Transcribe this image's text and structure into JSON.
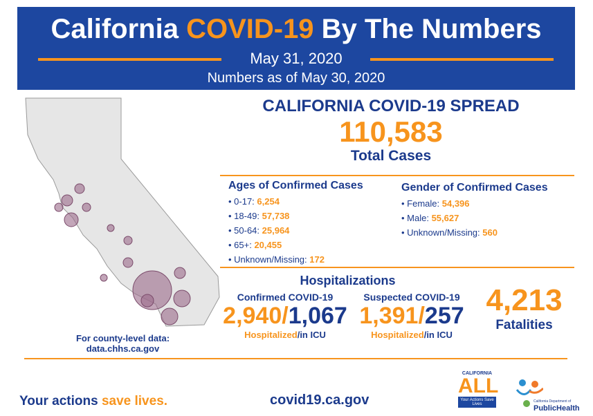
{
  "header": {
    "title_pre": "California ",
    "title_highlight": "COVID-19",
    "title_post": " By The Numbers",
    "date": "May 31, 2020",
    "as_of": "Numbers as of May 30, 2020"
  },
  "spread": {
    "heading": "CALIFORNIA COVID-19 SPREAD",
    "total": "110,583",
    "total_label": "Total Cases"
  },
  "ages": {
    "heading": "Ages of Confirmed Cases",
    "items": [
      {
        "label": "• 0-17: ",
        "value": "6,254"
      },
      {
        "label": "• 18-49: ",
        "value": "57,738"
      },
      {
        "label": "• 50-64: ",
        "value": "25,964"
      },
      {
        "label": "• 65+: ",
        "value": "20,455"
      },
      {
        "label": "• Unknown/Missing: ",
        "value": "172"
      }
    ]
  },
  "gender": {
    "heading": "Gender of Confirmed Cases",
    "items": [
      {
        "label": "• Female: ",
        "value": "54,396"
      },
      {
        "label": "• Male: ",
        "value": "55,627"
      },
      {
        "label": "• Unknown/Missing: ",
        "value": "560"
      }
    ]
  },
  "hosp": {
    "heading": "Hospitalizations",
    "confirmed": {
      "label": "Confirmed COVID-19",
      "hosp": "2,940",
      "icu": "1,067"
    },
    "suspected": {
      "label": "Suspected COVID-19",
      "hosp": "1,391",
      "icu": "257"
    },
    "sub_a": "Hospitalized",
    "sub_b": "/in ICU",
    "slash": "/"
  },
  "fatalities": {
    "value": "4,213",
    "label": "Fatalities"
  },
  "county": {
    "line1": "For county-level data:",
    "line2": "data.chhs.ca.gov"
  },
  "footer": {
    "slogan_a": "Your actions ",
    "slogan_b": "save lives.",
    "url": "covid19.ca.gov",
    "ca_all_top": "CALIFORNIA",
    "ca_all": "ALL",
    "ca_all_sub": "Your Actions Save Lives",
    "cdph_small": "California Department of",
    "cdph": "PublicHealth"
  },
  "colors": {
    "navy": "#1d47a0",
    "orange": "#f7941d"
  }
}
